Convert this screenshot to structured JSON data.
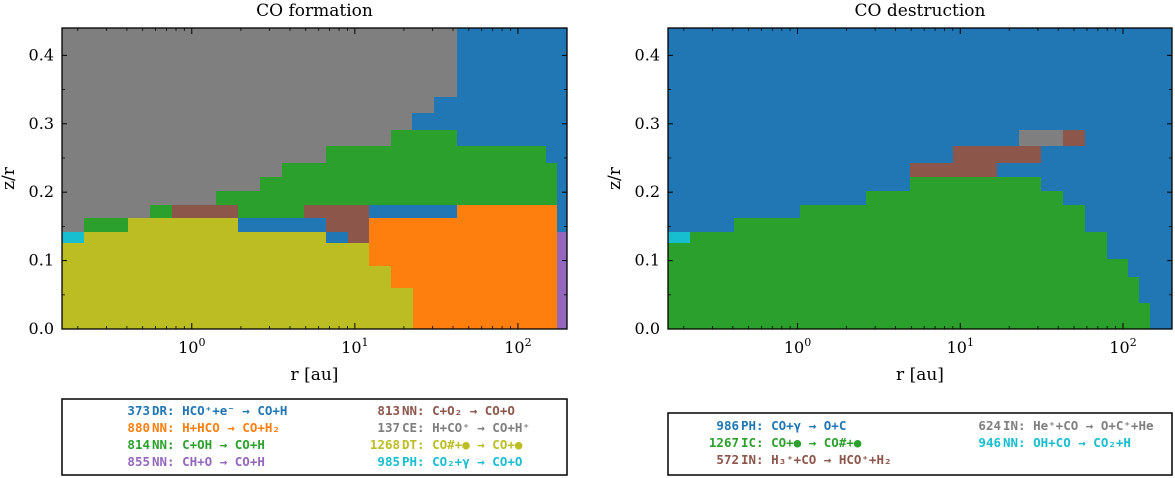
{
  "chart_data": [
    {
      "type": "heatmap",
      "title": "CO formation",
      "xlabel": "r [au]",
      "ylabel": "z/r",
      "xscale": "log",
      "xlim": [
        0.16,
        200
      ],
      "ylim": [
        0,
        0.44
      ],
      "x_ticks": [
        {
          "value": 1,
          "base": "10",
          "exp": "0"
        },
        {
          "value": 10,
          "base": "10",
          "exp": "1"
        },
        {
          "value": 100,
          "base": "10",
          "exp": "2"
        }
      ],
      "y_ticks": [
        {
          "value": 0.0,
          "label": "0.0"
        },
        {
          "value": 0.1,
          "label": "0.1"
        },
        {
          "value": 0.2,
          "label": "0.2"
        },
        {
          "value": 0.3,
          "label": "0.3"
        },
        {
          "value": 0.4,
          "label": "0.4"
        }
      ],
      "background_color": "#2077b4",
      "regions": [
        {
          "reaction": "137",
          "color": "#7f7f7f",
          "r": [
            0.16,
            40
          ],
          "z": [
            0.15,
            0.44
          ]
        },
        {
          "reaction": "814",
          "color": "#2ca02c",
          "r": [
            0.5,
            170
          ],
          "z": [
            0.15,
            0.29
          ]
        },
        {
          "reaction": "813",
          "color": "#8c564b",
          "r": [
            2,
            150
          ],
          "z": [
            0.12,
            0.2
          ]
        },
        {
          "reaction": "880",
          "color": "#ff7f0e",
          "r": [
            12,
            170
          ],
          "z": [
            0,
            0.18
          ]
        },
        {
          "reaction": "1268",
          "color": "#bcbd22",
          "r": [
            0.16,
            22
          ],
          "z": [
            0,
            0.17
          ]
        },
        {
          "reaction": "985",
          "color": "#17becf",
          "r": [
            0.16,
            0.2
          ],
          "z": [
            0.125,
            0.143
          ]
        },
        {
          "reaction": "855",
          "color": "#9467bd",
          "r": [
            180,
            200
          ],
          "z": [
            0,
            0.14
          ]
        }
      ],
      "legend": {
        "placement": "below",
        "entries": [
          {
            "num": "373",
            "type": "DR",
            "eq": "HCO⁺+e⁻ → CO+H",
            "color": "#1f77b4"
          },
          {
            "num": "880",
            "type": "NN",
            "eq": "H+HCO → CO+H₂",
            "color": "#ff7f0e"
          },
          {
            "num": "814",
            "type": "NN",
            "eq": "C+OH → CO+H",
            "color": "#2ca02c"
          },
          {
            "num": "855",
            "type": "NN",
            "eq": "CH+O → CO+H",
            "color": "#9467bd"
          },
          {
            "num": "813",
            "type": "NN",
            "eq": "C+O₂ → CO+O",
            "color": "#8c564b"
          },
          {
            "num": "137",
            "type": "CE",
            "eq": "H+CO⁺ → CO+H⁺",
            "color": "#7f7f7f"
          },
          {
            "num": "1268",
            "type": "DT",
            "eq": "CO#+● → CO+●",
            "color": "#bcbd22"
          },
          {
            "num": "985",
            "type": "PH",
            "eq": "CO₂+γ → CO+O",
            "color": "#17becf"
          }
        ]
      }
    },
    {
      "type": "heatmap",
      "title": "CO destruction",
      "xlabel": "r [au]",
      "ylabel": "z/r",
      "xscale": "log",
      "xlim": [
        0.16,
        200
      ],
      "ylim": [
        0,
        0.44
      ],
      "x_ticks": [
        {
          "value": 1,
          "base": "10",
          "exp": "0"
        },
        {
          "value": 10,
          "base": "10",
          "exp": "1"
        },
        {
          "value": 100,
          "base": "10",
          "exp": "2"
        }
      ],
      "y_ticks": [
        {
          "value": 0.0,
          "label": "0.0"
        },
        {
          "value": 0.1,
          "label": "0.1"
        },
        {
          "value": 0.2,
          "label": "0.2"
        },
        {
          "value": 0.3,
          "label": "0.3"
        },
        {
          "value": 0.4,
          "label": "0.4"
        }
      ],
      "background_color": "#2077b4",
      "regions": [
        {
          "reaction": "1267",
          "color": "#2ca02c",
          "r": [
            0.16,
            170
          ],
          "z": [
            0,
            0.22
          ]
        },
        {
          "reaction": "572",
          "color": "#8c564b",
          "r": [
            3.5,
            55
          ],
          "z": [
            0.2,
            0.27
          ]
        },
        {
          "reaction": "624",
          "color": "#7f7f7f",
          "r": [
            22,
            40
          ],
          "z": [
            0.27,
            0.29
          ]
        },
        {
          "reaction": "946",
          "color": "#17becf",
          "r": [
            0.16,
            0.2
          ],
          "z": [
            0.125,
            0.143
          ]
        }
      ],
      "legend": {
        "placement": "below",
        "entries": [
          {
            "num": "986",
            "type": "PH",
            "eq": "CO+γ → O+C",
            "color": "#1f77b4"
          },
          {
            "num": "1267",
            "type": "IC",
            "eq": "CO+● → CO#+●",
            "color": "#2ca02c"
          },
          {
            "num": "572",
            "type": "IN",
            "eq": "H₃⁺+CO → HCO⁺+H₂",
            "color": "#8c564b"
          },
          {
            "num": "624",
            "type": "IN",
            "eq": "He⁺+CO → O+C⁺+He",
            "color": "#7f7f7f"
          },
          {
            "num": "946",
            "type": "NN",
            "eq": "OH+CO → CO₂+H",
            "color": "#17becf"
          }
        ]
      }
    }
  ]
}
